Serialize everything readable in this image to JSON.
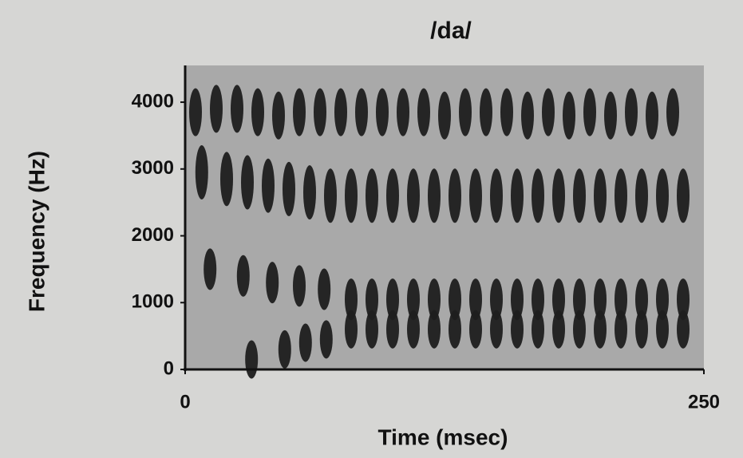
{
  "chart_data": {
    "type": "spectrogram",
    "title": "/da/",
    "x_label": "Time (msec)",
    "y_label": "Frequency (Hz)",
    "xlim": [
      0,
      250
    ],
    "ylim": [
      0,
      4550
    ],
    "xticks": [
      0,
      250
    ],
    "yticks": [
      0,
      1000,
      2000,
      3000,
      4000
    ],
    "color": "#1e1e1e",
    "background": "#a9a9a9",
    "series": [
      {
        "x": [
          5,
          15,
          25,
          35,
          45,
          55,
          65,
          75,
          85,
          95,
          105,
          115,
          125,
          135,
          145,
          155,
          165,
          175,
          185,
          195,
          205,
          215,
          225,
          235
        ],
        "values": [
          3850,
          3900,
          3900,
          3850,
          3800,
          3850,
          3850,
          3850,
          3850,
          3850,
          3850,
          3850,
          3800,
          3850,
          3850,
          3850,
          3800,
          3850,
          3800,
          3850,
          3800,
          3850,
          3800,
          3850
        ]
      },
      {
        "x": [
          8,
          20,
          30,
          40,
          50,
          60,
          70,
          80,
          90,
          100,
          110,
          120,
          130,
          140,
          150,
          160,
          170,
          180,
          190,
          200,
          210,
          220,
          230,
          240
        ],
        "values": [
          2950,
          2850,
          2800,
          2750,
          2700,
          2650,
          2600,
          2600,
          2600,
          2600,
          2600,
          2600,
          2600,
          2600,
          2600,
          2600,
          2600,
          2600,
          2600,
          2600,
          2600,
          2600,
          2600,
          2600
        ]
      },
      {
        "x": [
          12,
          28,
          42,
          55,
          67,
          80,
          90,
          100,
          110,
          120,
          130,
          140,
          150,
          160,
          170,
          180,
          190,
          200,
          210,
          220,
          230,
          240
        ],
        "values": [
          1500,
          1400,
          1300,
          1250,
          1200,
          1050,
          1050,
          1050,
          1050,
          1050,
          1050,
          1050,
          1050,
          1050,
          1050,
          1050,
          1050,
          1050,
          1050,
          1050,
          1050,
          1050
        ]
      },
      {
        "x": [
          32,
          48,
          58,
          68,
          80,
          90,
          100,
          110,
          120,
          130,
          140,
          150,
          160,
          170,
          180,
          190,
          200,
          210,
          220,
          230,
          240
        ],
        "values": [
          150,
          300,
          400,
          450,
          600,
          600,
          600,
          600,
          600,
          600,
          600,
          600,
          600,
          600,
          600,
          600,
          600,
          600,
          600,
          600,
          600
        ]
      }
    ]
  }
}
